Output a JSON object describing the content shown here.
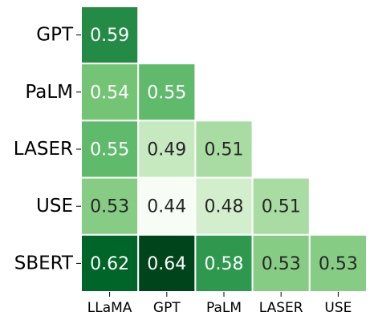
{
  "chart_data": {
    "type": "heatmap",
    "title": "",
    "xlabel": "",
    "ylabel": "",
    "rows": [
      "GPT",
      "PaLM",
      "LASER",
      "USE",
      "SBERT"
    ],
    "columns": [
      "LLaMA",
      "GPT",
      "PaLM",
      "LASER",
      "USE"
    ],
    "layout": "lower-triangular",
    "values": [
      [
        0.59,
        null,
        null,
        null,
        null
      ],
      [
        0.54,
        0.55,
        null,
        null,
        null
      ],
      [
        0.55,
        0.49,
        0.51,
        null,
        null
      ],
      [
        0.53,
        0.44,
        0.48,
        0.51,
        null
      ],
      [
        0.62,
        0.64,
        0.58,
        0.53,
        0.53
      ]
    ],
    "colormap": "Greens",
    "value_range": [
      0.44,
      0.64
    ],
    "colorbar": false
  }
}
